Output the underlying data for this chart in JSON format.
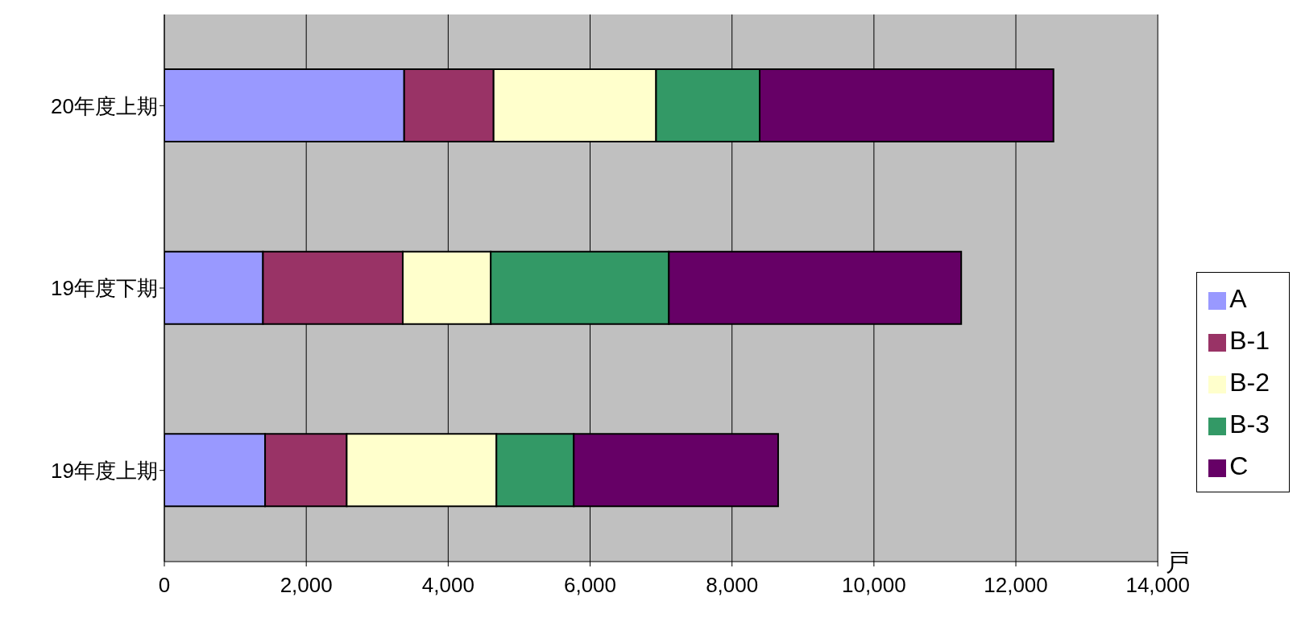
{
  "chart_data": {
    "type": "bar",
    "orientation": "horizontal",
    "stacked": true,
    "xlabel": "戸",
    "categories": [
      "20年度上期",
      "19年度下期",
      "19年度上期"
    ],
    "series": [
      {
        "name": "A",
        "color": "#9999ff",
        "values": [
          3380,
          1390,
          1420
        ]
      },
      {
        "name": "B-1",
        "color": "#993366",
        "values": [
          1260,
          1970,
          1150
        ]
      },
      {
        "name": "B-2",
        "color": "#ffffcc",
        "values": [
          2290,
          1240,
          2110
        ]
      },
      {
        "name": "B-3",
        "color": "#339966",
        "values": [
          1460,
          2510,
          1090
        ]
      },
      {
        "name": "C",
        "color": "#660066",
        "values": [
          4140,
          4120,
          2880
        ]
      }
    ],
    "xlim": [
      0,
      14000
    ],
    "xticks": [
      0,
      {
        "value": 2000,
        "label": "2,000"
      },
      {
        "value": 4000,
        "label": "4,000"
      },
      {
        "value": 6000,
        "label": "6,000"
      },
      {
        "value": 8000,
        "label": "8,000"
      },
      {
        "value": 10000,
        "label": "10,000"
      },
      {
        "value": 12000,
        "label": "12,000"
      },
      {
        "value": 14000,
        "label": "14,000"
      }
    ],
    "grid": "x",
    "legend": "right"
  }
}
